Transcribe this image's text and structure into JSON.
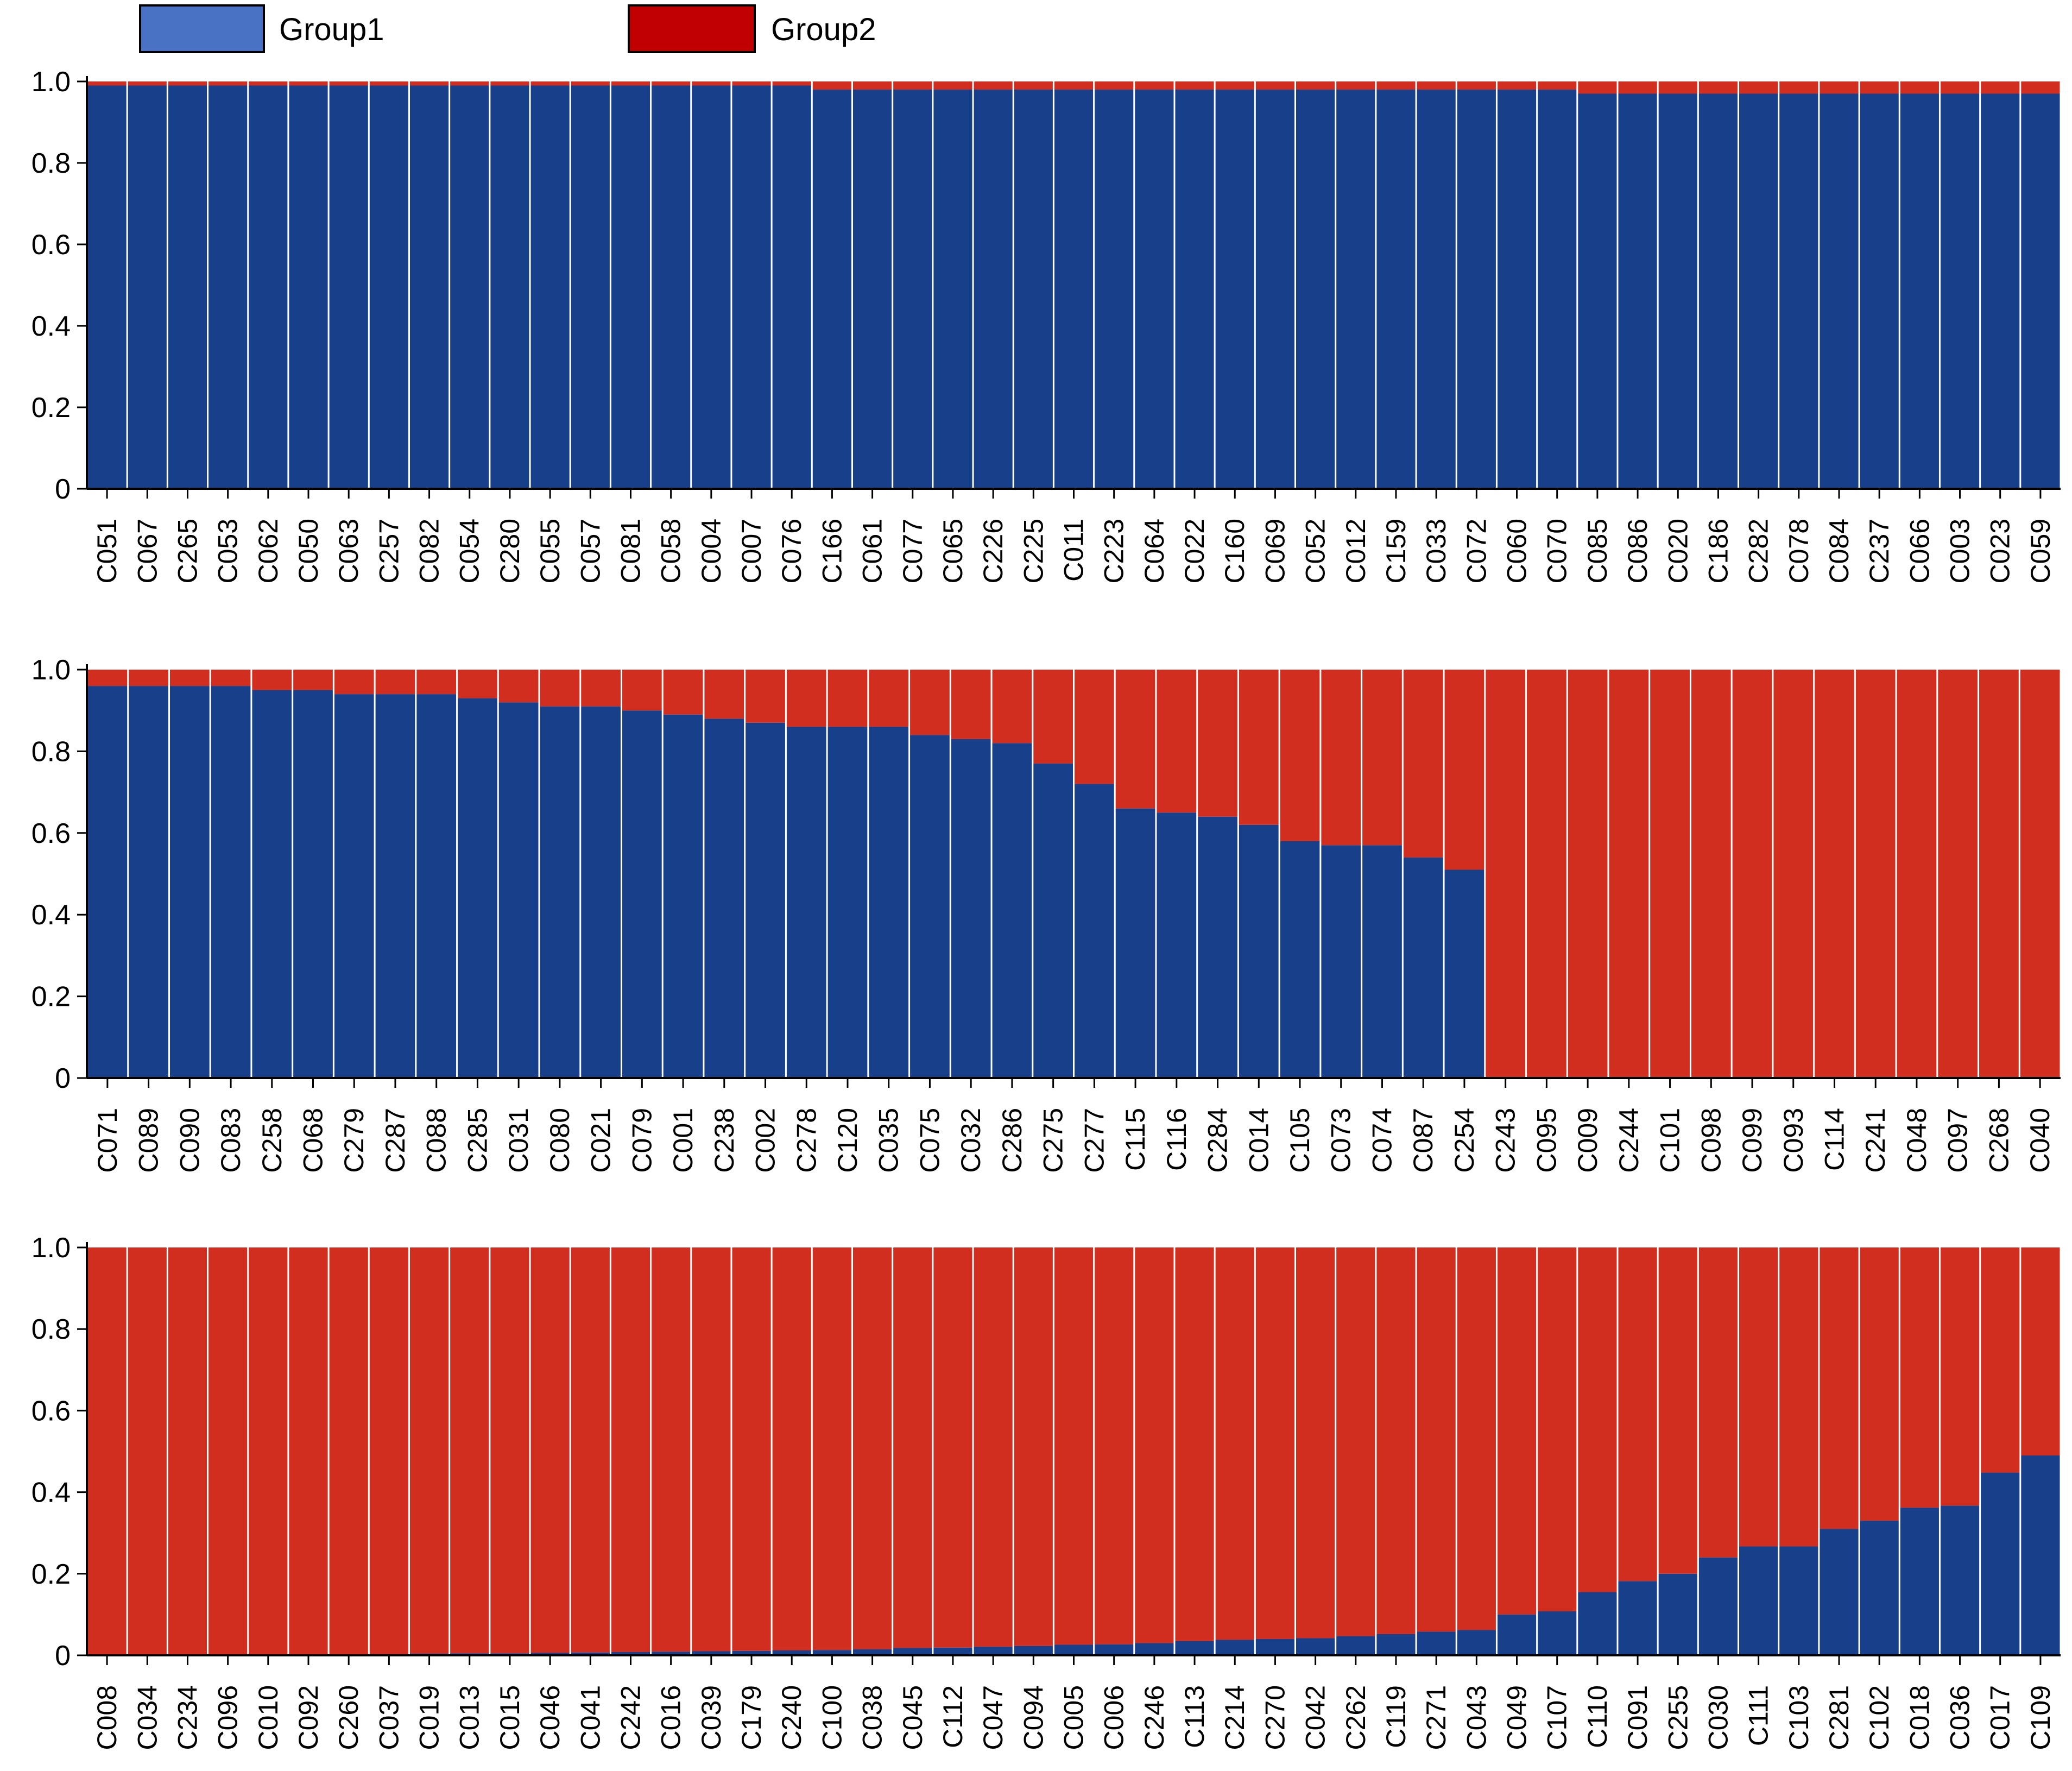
{
  "legend": [
    {
      "name": "Group1",
      "color": "#4a72c4"
    },
    {
      "name": "Group2",
      "color": "#c00000"
    }
  ],
  "colors": {
    "group1": "#173f8a",
    "group2": "#d12e1f"
  },
  "chart_data": [
    {
      "type": "bar",
      "stacked": true,
      "ylim": [
        0,
        1
      ],
      "yticks": [
        "0",
        "0.2",
        "0.4",
        "0.6",
        "0.8",
        "1.0"
      ],
      "categories": [
        "C051",
        "C067",
        "C265",
        "C053",
        "C062",
        "C050",
        "C063",
        "C257",
        "C082",
        "C054",
        "C280",
        "C055",
        "C057",
        "C081",
        "C058",
        "C004",
        "C007",
        "C076",
        "C166",
        "C061",
        "C077",
        "C065",
        "C226",
        "C225",
        "C011",
        "C223",
        "C064",
        "C022",
        "C160",
        "C069",
        "C052",
        "C012",
        "C159",
        "C033",
        "C072",
        "C060",
        "C070",
        "C085",
        "C086",
        "C020",
        "C186",
        "C282",
        "C078",
        "C084",
        "C237",
        "C066",
        "C003",
        "C023",
        "C059"
      ],
      "series": [
        {
          "name": "Group1",
          "values": [
            0.99,
            0.99,
            0.99,
            0.99,
            0.99,
            0.99,
            0.99,
            0.99,
            0.99,
            0.99,
            0.99,
            0.99,
            0.99,
            0.99,
            0.99,
            0.99,
            0.99,
            0.99,
            0.98,
            0.98,
            0.98,
            0.98,
            0.98,
            0.98,
            0.98,
            0.98,
            0.98,
            0.98,
            0.98,
            0.98,
            0.98,
            0.98,
            0.98,
            0.98,
            0.98,
            0.98,
            0.98,
            0.97,
            0.97,
            0.97,
            0.97,
            0.97,
            0.97,
            0.97,
            0.97,
            0.97,
            0.97,
            0.97,
            0.97
          ]
        },
        {
          "name": "Group2",
          "values": [
            0.01,
            0.01,
            0.01,
            0.01,
            0.01,
            0.01,
            0.01,
            0.01,
            0.01,
            0.01,
            0.01,
            0.01,
            0.01,
            0.01,
            0.01,
            0.01,
            0.01,
            0.01,
            0.02,
            0.02,
            0.02,
            0.02,
            0.02,
            0.02,
            0.02,
            0.02,
            0.02,
            0.02,
            0.02,
            0.02,
            0.02,
            0.02,
            0.02,
            0.02,
            0.02,
            0.02,
            0.02,
            0.03,
            0.03,
            0.03,
            0.03,
            0.03,
            0.03,
            0.03,
            0.03,
            0.03,
            0.03,
            0.03,
            0.03
          ]
        }
      ]
    },
    {
      "type": "bar",
      "stacked": true,
      "ylim": [
        0,
        1
      ],
      "yticks": [
        "0",
        "0.2",
        "0.4",
        "0.6",
        "0.8",
        "1.0"
      ],
      "categories": [
        "C071",
        "C089",
        "C090",
        "C083",
        "C258",
        "C068",
        "C279",
        "C287",
        "C088",
        "C285",
        "C031",
        "C080",
        "C021",
        "C079",
        "C001",
        "C238",
        "C002",
        "C278",
        "C120",
        "C035",
        "C075",
        "C032",
        "C286",
        "C275",
        "C277",
        "C115",
        "C116",
        "C284",
        "C014",
        "C105",
        "C073",
        "C074",
        "C087",
        "C254",
        "C243",
        "C095",
        "C009",
        "C244",
        "C101",
        "C098",
        "C099",
        "C093",
        "C114",
        "C241",
        "C048",
        "C097",
        "C268",
        "C040"
      ],
      "series": [
        {
          "name": "Group1",
          "values": [
            0.96,
            0.96,
            0.96,
            0.96,
            0.95,
            0.95,
            0.94,
            0.94,
            0.94,
            0.93,
            0.92,
            0.91,
            0.91,
            0.9,
            0.89,
            0.88,
            0.87,
            0.86,
            0.86,
            0.86,
            0.84,
            0.83,
            0.82,
            0.77,
            0.72,
            0.66,
            0.65,
            0.64,
            0.62,
            0.58,
            0.57,
            0.57,
            0.54,
            0.51,
            0,
            0,
            0,
            0,
            0,
            0,
            0,
            0,
            0,
            0,
            0,
            0,
            0,
            0
          ]
        },
        {
          "name": "Group2",
          "values": [
            0.04,
            0.04,
            0.04,
            0.04,
            0.05,
            0.05,
            0.06,
            0.06,
            0.06,
            0.07,
            0.08,
            0.09,
            0.09,
            0.1,
            0.11,
            0.12,
            0.13,
            0.14,
            0.14,
            0.14,
            0.16,
            0.17,
            0.18,
            0.23,
            0.28,
            0.34,
            0.35,
            0.36,
            0.38,
            0.42,
            0.43,
            0.43,
            0.46,
            0.49,
            1,
            1,
            1,
            1,
            1,
            1,
            1,
            1,
            1,
            1,
            1,
            1,
            1,
            1
          ]
        }
      ]
    },
    {
      "type": "bar",
      "stacked": true,
      "ylim": [
        0,
        1
      ],
      "yticks": [
        "0",
        "0.2",
        "0.4",
        "0.6",
        "0.8",
        "1.0"
      ],
      "categories": [
        "C008",
        "C034",
        "C234",
        "C096",
        "C010",
        "C092",
        "C260",
        "C037",
        "C019",
        "C013",
        "C015",
        "C046",
        "C041",
        "C242",
        "C016",
        "C039",
        "C179",
        "C240",
        "C100",
        "C038",
        "C045",
        "C112",
        "C047",
        "C094",
        "C005",
        "C006",
        "C246",
        "C113",
        "C214",
        "C270",
        "C042",
        "C262",
        "C119",
        "C271",
        "C043",
        "C049",
        "C107",
        "C110",
        "C091",
        "C255",
        "C030",
        "C111",
        "C103",
        "C281",
        "C102",
        "C018",
        "C036",
        "C017",
        "C109"
      ],
      "series": [
        {
          "name": "Group1",
          "values": [
            0,
            0,
            0,
            0,
            0,
            0,
            0.002,
            0.003,
            0.004,
            0.005,
            0.005,
            0.006,
            0.007,
            0.008,
            0.009,
            0.01,
            0.011,
            0.012,
            0.013,
            0.015,
            0.018,
            0.019,
            0.021,
            0.023,
            0.026,
            0.027,
            0.03,
            0.035,
            0.038,
            0.04,
            0.042,
            0.047,
            0.052,
            0.058,
            0.062,
            0.1,
            0.108,
            0.155,
            0.182,
            0.2,
            0.24,
            0.267,
            0.267,
            0.31,
            0.33,
            0.362,
            0.367,
            0.448,
            0.49
          ]
        },
        {
          "name": "Group2",
          "values": [
            1,
            1,
            1,
            1,
            1,
            1,
            0.998,
            0.997,
            0.996,
            0.995,
            0.995,
            0.994,
            0.993,
            0.992,
            0.991,
            0.99,
            0.989,
            0.988,
            0.987,
            0.985,
            0.982,
            0.981,
            0.979,
            0.977,
            0.974,
            0.973,
            0.97,
            0.965,
            0.962,
            0.96,
            0.958,
            0.953,
            0.948,
            0.942,
            0.938,
            0.9,
            0.892,
            0.845,
            0.818,
            0.8,
            0.76,
            0.733,
            0.733,
            0.69,
            0.67,
            0.638,
            0.633,
            0.552,
            0.51
          ]
        }
      ]
    }
  ]
}
